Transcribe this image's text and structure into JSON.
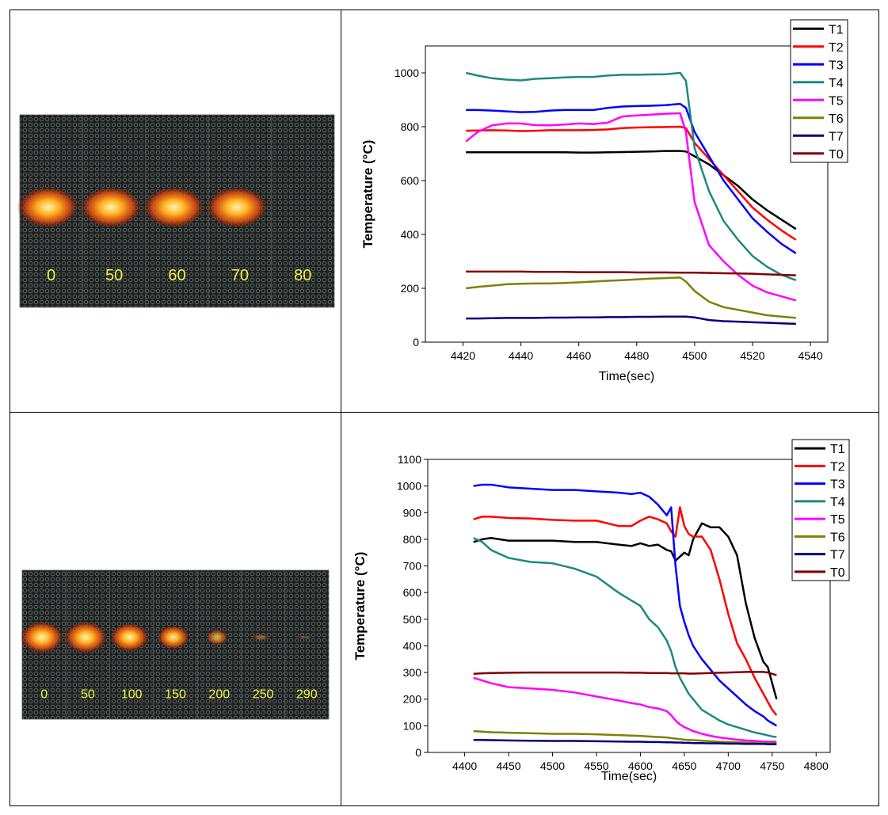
{
  "photos": [
    {
      "labels": [
        "0",
        "50",
        "60",
        "70",
        "80"
      ]
    },
    {
      "labels": [
        "0",
        "50",
        "100",
        "150",
        "200",
        "250",
        "290"
      ]
    }
  ],
  "chart_data": [
    {
      "type": "line",
      "x_label": "Time(sec)",
      "y_label": "Temperature (°C)",
      "xlim": [
        4407,
        4546
      ],
      "ylim": [
        0,
        1100
      ],
      "xticks": [
        4420,
        4440,
        4460,
        4480,
        4500,
        4520,
        4540
      ],
      "yticks": [
        0,
        200,
        400,
        600,
        800,
        1000
      ],
      "legend": "upper right",
      "x": [
        4421,
        4425,
        4430,
        4435,
        4440,
        4445,
        4450,
        4455,
        4460,
        4465,
        4470,
        4475,
        4480,
        4485,
        4490,
        4495,
        4497,
        4500,
        4505,
        4510,
        4515,
        4520,
        4525,
        4530,
        4535
      ],
      "series": [
        {
          "name": "T1",
          "color": "#000000",
          "values": [
            705,
            705,
            705,
            705,
            705,
            705,
            705,
            705,
            704,
            704,
            705,
            706,
            707,
            708,
            710,
            710,
            708,
            690,
            660,
            620,
            580,
            530,
            490,
            455,
            420
          ]
        },
        {
          "name": "T2",
          "color": "#ff0000",
          "values": [
            785,
            786,
            787,
            786,
            784,
            785,
            787,
            787,
            787,
            788,
            790,
            795,
            797,
            798,
            799,
            800,
            795,
            740,
            680,
            620,
            560,
            500,
            455,
            415,
            380
          ]
        },
        {
          "name": "T3",
          "color": "#0000ff",
          "values": [
            862,
            862,
            860,
            857,
            854,
            855,
            860,
            862,
            862,
            862,
            870,
            875,
            877,
            878,
            880,
            885,
            870,
            780,
            690,
            600,
            530,
            460,
            410,
            365,
            330
          ]
        },
        {
          "name": "T4",
          "color": "#1a8a80",
          "values": [
            1000,
            990,
            980,
            975,
            972,
            978,
            980,
            983,
            985,
            985,
            990,
            993,
            993,
            994,
            995,
            1000,
            970,
            720,
            560,
            450,
            380,
            320,
            280,
            250,
            230
          ]
        },
        {
          "name": "T5",
          "color": "#ff00ff",
          "values": [
            745,
            780,
            805,
            812,
            812,
            806,
            805,
            808,
            812,
            810,
            815,
            838,
            842,
            845,
            848,
            850,
            780,
            520,
            360,
            300,
            250,
            210,
            185,
            170,
            155
          ]
        },
        {
          "name": "T6",
          "color": "#808000",
          "values": [
            200,
            205,
            210,
            215,
            217,
            218,
            218,
            220,
            222,
            225,
            228,
            230,
            233,
            236,
            238,
            240,
            225,
            190,
            150,
            130,
            120,
            110,
            100,
            95,
            90
          ]
        },
        {
          "name": "T7",
          "color": "#000080",
          "values": [
            88,
            88,
            89,
            90,
            90,
            90,
            91,
            91,
            92,
            92,
            93,
            93,
            94,
            94,
            95,
            95,
            95,
            92,
            82,
            78,
            76,
            74,
            72,
            70,
            68
          ]
        },
        {
          "name": "T0",
          "color": "#800000",
          "values": [
            262,
            262,
            262,
            262,
            262,
            261,
            261,
            261,
            260,
            260,
            260,
            260,
            259,
            259,
            259,
            258,
            258,
            258,
            257,
            256,
            255,
            254,
            252,
            250,
            248
          ]
        }
      ]
    },
    {
      "type": "line",
      "x_label": "Time(sec)",
      "y_label": "Temperature (°C)",
      "xlim": [
        4358,
        4816
      ],
      "ylim": [
        0,
        1100
      ],
      "xticks": [
        4400,
        4450,
        4500,
        4550,
        4600,
        4650,
        4700,
        4750,
        4800
      ],
      "yticks": [
        0,
        100,
        200,
        300,
        400,
        500,
        600,
        700,
        800,
        900,
        1000,
        1100
      ],
      "legend": "upper right",
      "x": [
        4410,
        4420,
        4430,
        4450,
        4475,
        4500,
        4525,
        4550,
        4575,
        4590,
        4600,
        4610,
        4620,
        4630,
        4635,
        4640,
        4645,
        4650,
        4655,
        4660,
        4670,
        4680,
        4690,
        4700,
        4710,
        4720,
        4730,
        4740,
        4745,
        4750,
        4755
      ],
      "series": [
        {
          "name": "T1",
          "color": "#000000",
          "values": [
            790,
            800,
            805,
            795,
            795,
            795,
            790,
            790,
            780,
            775,
            785,
            775,
            780,
            760,
            755,
            720,
            735,
            750,
            740,
            800,
            860,
            845,
            845,
            810,
            740,
            560,
            430,
            340,
            320,
            260,
            200
          ]
        },
        {
          "name": "T2",
          "color": "#ff0000",
          "values": [
            875,
            885,
            885,
            880,
            878,
            873,
            870,
            870,
            850,
            850,
            870,
            885,
            875,
            860,
            830,
            810,
            920,
            850,
            820,
            810,
            810,
            760,
            650,
            520,
            410,
            350,
            280,
            220,
            190,
            160,
            140
          ]
        },
        {
          "name": "T3",
          "color": "#0000ff",
          "values": [
            1000,
            1005,
            1005,
            995,
            990,
            985,
            985,
            980,
            975,
            970,
            975,
            960,
            930,
            890,
            920,
            700,
            550,
            490,
            440,
            400,
            350,
            310,
            270,
            240,
            210,
            180,
            155,
            135,
            120,
            110,
            100
          ]
        },
        {
          "name": "T4",
          "color": "#1a8a80",
          "values": [
            805,
            790,
            760,
            730,
            715,
            710,
            690,
            660,
            600,
            570,
            550,
            500,
            470,
            420,
            380,
            320,
            280,
            250,
            220,
            200,
            160,
            140,
            120,
            105,
            95,
            85,
            75,
            68,
            64,
            60,
            58
          ]
        },
        {
          "name": "T5",
          "color": "#ff00ff",
          "values": [
            280,
            270,
            260,
            245,
            240,
            235,
            225,
            210,
            195,
            185,
            180,
            170,
            165,
            155,
            140,
            120,
            105,
            95,
            88,
            80,
            70,
            62,
            56,
            52,
            48,
            45,
            43,
            41,
            40,
            40,
            40
          ]
        },
        {
          "name": "T6",
          "color": "#808000",
          "values": [
            80,
            78,
            76,
            74,
            72,
            70,
            70,
            68,
            65,
            63,
            62,
            60,
            58,
            56,
            54,
            52,
            50,
            48,
            47,
            46,
            44,
            42,
            40,
            39,
            38,
            37,
            36,
            35,
            35,
            34,
            34
          ]
        },
        {
          "name": "T7",
          "color": "#000080",
          "values": [
            47,
            47,
            46,
            45,
            44,
            43,
            43,
            42,
            41,
            40,
            40,
            39,
            39,
            38,
            38,
            37,
            37,
            36,
            36,
            35,
            35,
            34,
            34,
            33,
            33,
            32,
            32,
            32,
            31,
            31,
            31
          ]
        },
        {
          "name": "T0",
          "color": "#800000",
          "values": [
            295,
            297,
            298,
            299,
            300,
            300,
            300,
            300,
            300,
            299,
            299,
            298,
            298,
            298,
            297,
            297,
            297,
            297,
            296,
            296,
            297,
            298,
            299,
            300,
            301,
            302,
            302,
            302,
            300,
            295,
            290
          ]
        }
      ]
    }
  ]
}
